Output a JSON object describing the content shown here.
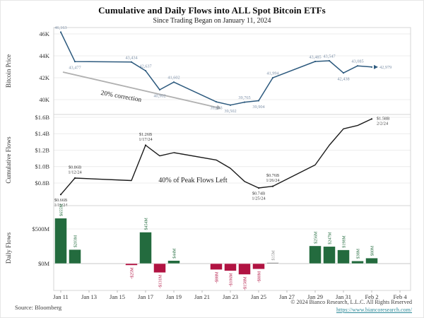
{
  "header": {
    "title": "Cumulative and Daily Flows into ALL Spot Bitcoin ETFs",
    "subtitle": "Since Trading Began on January 11, 2024"
  },
  "footer": {
    "source": "Source: Bloomberg",
    "copyright": "© 2024 Bianco Research, L.L.C. All Rights Reserved",
    "url": "https://www.biancoresearch.com/"
  },
  "colors": {
    "price_line": "#2d5a7e",
    "price_label": "#7e91a8",
    "trend_line": "#b0b0b0",
    "cumulative_line": "#1a1a1a",
    "cumulative_label": "#3a3a3a",
    "bar_green": "#236b3e",
    "bar_red": "#b11342",
    "bar_neutral": "#8c8c8c",
    "grid": "#ececec",
    "zero_line": "#c8c8c8",
    "border": "#d4d4d4",
    "tick_text": "#333333",
    "annotation_text": "#1c1c1c"
  },
  "x_axis": {
    "tick_labels": [
      "Jan 11",
      "Jan 13",
      "Jan 15",
      "Jan 17",
      "Jan 19",
      "Jan 21",
      "Jan 23",
      "Jan 25",
      "Jan 27",
      "Jan 29",
      "Jan 31",
      "Feb 2",
      "Feb 4"
    ],
    "tick_days": [
      0,
      2,
      4,
      6,
      8,
      10,
      12,
      14,
      16,
      18,
      20,
      22,
      24
    ]
  },
  "chart_data": [
    {
      "type": "line",
      "id": "bitcoin-price",
      "axis_title": "Bitcoin Price",
      "ylim": [
        39300,
        46600
      ],
      "yticks": [
        {
          "label": "46K",
          "value": 46000
        },
        {
          "label": "44K",
          "value": 44000
        },
        {
          "label": "42K",
          "value": 42000
        },
        {
          "label": "40K",
          "value": 40000
        }
      ],
      "points": [
        {
          "date": "Jan 11",
          "day": 0,
          "value": 46163,
          "label": "46,163",
          "pos": "above"
        },
        {
          "date": "Jan 12",
          "day": 1,
          "value": 43477,
          "label": "43,477",
          "pos": "below"
        },
        {
          "date": "Jan 16",
          "day": 5,
          "value": 43434,
          "label": "43,434",
          "pos": "above"
        },
        {
          "date": "Jan 17",
          "day": 6,
          "value": 42637,
          "label": "42,637",
          "pos": "above"
        },
        {
          "date": "Jan 18",
          "day": 7,
          "value": 40902,
          "label": "40,902",
          "pos": "below"
        },
        {
          "date": "Jan 19",
          "day": 8,
          "value": 41602,
          "label": "41,602",
          "pos": "above"
        },
        {
          "date": "Jan 22",
          "day": 11,
          "value": 39803,
          "label": "39,803",
          "pos": "below"
        },
        {
          "date": "Jan 23",
          "day": 12,
          "value": 39502,
          "label": "39,502",
          "pos": "below"
        },
        {
          "date": "Jan 24",
          "day": 13,
          "value": 39765,
          "label": "39,765",
          "pos": "above"
        },
        {
          "date": "Jan 25",
          "day": 14,
          "value": 39904,
          "label": "39,904",
          "pos": "below"
        },
        {
          "date": "Jan 26",
          "day": 15,
          "value": 41994,
          "label": "41,994",
          "pos": "above"
        },
        {
          "date": "Jan 29",
          "day": 18,
          "value": 43485,
          "label": "43,485",
          "pos": "above"
        },
        {
          "date": "Jan 30",
          "day": 19,
          "value": 43547,
          "label": "43,547",
          "pos": "above"
        },
        {
          "date": "Jan 31",
          "day": 20,
          "value": 42438,
          "label": "42,438",
          "pos": "below"
        },
        {
          "date": "Feb 1",
          "day": 21,
          "value": 43085,
          "label": "43,085",
          "pos": "above"
        },
        {
          "date": "Feb 2",
          "day": 22,
          "value": 42979,
          "label": "42,979",
          "pos": "right"
        }
      ],
      "annotation": "20% correction"
    },
    {
      "type": "line",
      "id": "cumulative-flows",
      "axis_title": "Cumulative Flows",
      "ylim": [
        0.6,
        1.65
      ],
      "yticks": [
        {
          "label": "$1.6B",
          "value": 1.6
        },
        {
          "label": "$1.4B",
          "value": 1.4
        },
        {
          "label": "$1.2B",
          "value": 1.2
        },
        {
          "label": "$1.0B",
          "value": 1.0
        },
        {
          "label": "$0.8B",
          "value": 0.8
        }
      ],
      "points": [
        {
          "date": "Jan 11",
          "day": 0,
          "value": 0.66,
          "label": "$0.66B",
          "sublabel": "1/11/24",
          "pos": "below"
        },
        {
          "date": "Jan 12",
          "day": 1,
          "value": 0.86,
          "label": "$0.86B",
          "sublabel": "1/12/24",
          "pos": "above"
        },
        {
          "date": "Jan 16",
          "day": 5,
          "value": 0.83
        },
        {
          "date": "Jan 17",
          "day": 6,
          "value": 1.26,
          "label": "$1.26B",
          "sublabel": "1/17/24",
          "pos": "above"
        },
        {
          "date": "Jan 18",
          "day": 7,
          "value": 1.13
        },
        {
          "date": "Jan 19",
          "day": 8,
          "value": 1.17
        },
        {
          "date": "Jan 22",
          "day": 11,
          "value": 1.08
        },
        {
          "date": "Jan 23",
          "day": 12,
          "value": 0.98
        },
        {
          "date": "Jan 24",
          "day": 13,
          "value": 0.82
        },
        {
          "date": "Jan 25",
          "day": 14,
          "value": 0.74,
          "label": "$0.74B",
          "sublabel": "1/25/24",
          "pos": "below"
        },
        {
          "date": "Jan 26",
          "day": 15,
          "value": 0.76,
          "label": "$0.76B",
          "sublabel": "1/26/24",
          "pos": "above"
        },
        {
          "date": "Jan 29",
          "day": 18,
          "value": 1.02
        },
        {
          "date": "Jan 30",
          "day": 19,
          "value": 1.26
        },
        {
          "date": "Jan 31",
          "day": 20,
          "value": 1.46
        },
        {
          "date": "Feb 1",
          "day": 21,
          "value": 1.5
        },
        {
          "date": "Feb 2",
          "day": 22,
          "value": 1.58,
          "label": "$1.58B",
          "sublabel": "2/2/24",
          "pos": "right"
        }
      ],
      "annotation": "40% of Peak Flows Left"
    },
    {
      "type": "bar",
      "id": "daily-flows",
      "axis_title": "Daily Flows",
      "ylim": [
        -220,
        820
      ],
      "yticks": [
        {
          "label": "$500M",
          "value": 500
        },
        {
          "label": "$0M",
          "value": 0
        }
      ],
      "bars": [
        {
          "date": "Jan 11",
          "day": 0,
          "value": 655,
          "label": "$655M",
          "color": "green"
        },
        {
          "date": "Jan 12",
          "day": 1,
          "value": 203,
          "label": "$203M",
          "color": "green"
        },
        {
          "date": "Jan 16",
          "day": 5,
          "value": -25,
          "label": "-$25M",
          "color": "red"
        },
        {
          "date": "Jan 17",
          "day": 6,
          "value": 454,
          "label": "$454M",
          "color": "green"
        },
        {
          "date": "Jan 18",
          "day": 7,
          "value": -131,
          "label": "-$131M",
          "color": "red"
        },
        {
          "date": "Jan 19",
          "day": 8,
          "value": 44,
          "label": "$44M",
          "color": "green"
        },
        {
          "date": "Jan 22",
          "day": 11,
          "value": -88,
          "label": "-$88M",
          "color": "red"
        },
        {
          "date": "Jan 23",
          "day": 12,
          "value": -106,
          "label": "-$106M",
          "color": "red"
        },
        {
          "date": "Jan 24",
          "day": 13,
          "value": -158,
          "label": "-$158M",
          "color": "red"
        },
        {
          "date": "Jan 25",
          "day": 14,
          "value": -80,
          "label": "-$80M",
          "color": "red"
        },
        {
          "date": "Jan 26",
          "day": 15,
          "value": 15,
          "label": "$15M",
          "color": "neutral"
        },
        {
          "date": "Jan 29",
          "day": 18,
          "value": 256,
          "label": "$256M",
          "color": "green"
        },
        {
          "date": "Jan 30",
          "day": 19,
          "value": 247,
          "label": "$247M",
          "color": "green"
        },
        {
          "date": "Jan 31",
          "day": 20,
          "value": 198,
          "label": "$198M",
          "color": "green"
        },
        {
          "date": "Feb 1",
          "day": 21,
          "value": 38,
          "label": "$38M",
          "color": "green"
        },
        {
          "date": "Feb 2",
          "day": 22,
          "value": 80,
          "label": "$80M",
          "color": "green"
        }
      ]
    }
  ]
}
